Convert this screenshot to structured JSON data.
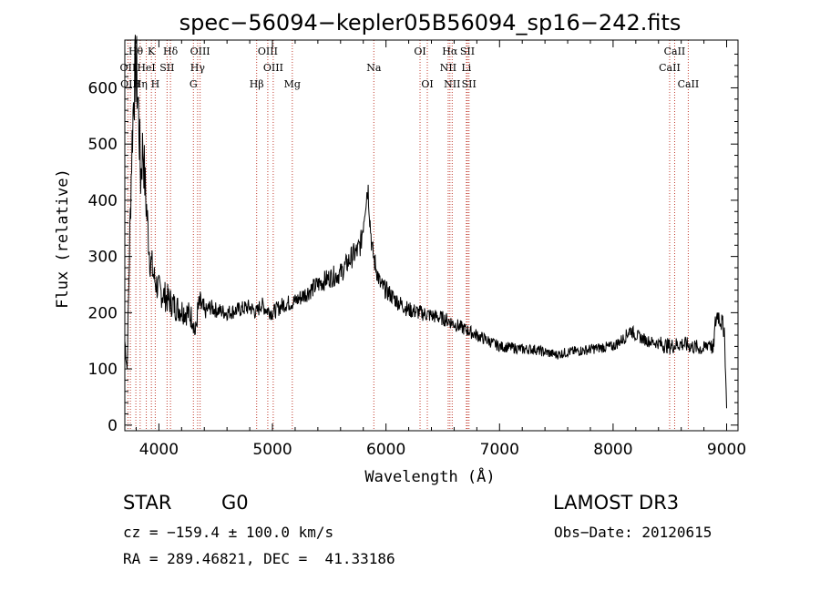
{
  "chart_data": {
    "type": "line",
    "title": "spec−56094−kepler05B56094_sp16−242.fits",
    "xlabel": "Wavelength (Å)",
    "ylabel": "Flux (relative)",
    "xlim": [
      3700,
      9100
    ],
    "ylim": [
      -10,
      685
    ],
    "xticks": [
      4000,
      5000,
      6000,
      7000,
      8000,
      9000
    ],
    "yticks": [
      0,
      100,
      200,
      300,
      400,
      500,
      600
    ],
    "grid": false,
    "series": [
      {
        "name": "flux",
        "x": [
          3700,
          3720,
          3740,
          3760,
          3780,
          3800,
          3820,
          3840,
          3860,
          3880,
          3900,
          3920,
          3940,
          3960,
          3980,
          4000,
          4050,
          4100,
          4150,
          4200,
          4250,
          4300,
          4320,
          4340,
          4360,
          4400,
          4450,
          4500,
          4600,
          4700,
          4800,
          4860,
          4900,
          4950,
          5000,
          5100,
          5200,
          5300,
          5400,
          5500,
          5600,
          5700,
          5750,
          5780,
          5800,
          5820,
          5840,
          5850,
          5860,
          5880,
          5900,
          5950,
          6000,
          6100,
          6200,
          6300,
          6400,
          6500,
          6560,
          6600,
          6700,
          6800,
          6900,
          7000,
          7100,
          7200,
          7300,
          7400,
          7500,
          7600,
          7700,
          7800,
          7900,
          8000,
          8100,
          8150,
          8200,
          8300,
          8400,
          8500,
          8600,
          8700,
          8800,
          8850,
          8880,
          8900,
          8920,
          8950,
          8980,
          9000
        ],
        "y": [
          150,
          100,
          300,
          480,
          600,
          640,
          560,
          440,
          500,
          420,
          360,
          300,
          280,
          260,
          250,
          240,
          230,
          220,
          210,
          205,
          200,
          190,
          160,
          200,
          215,
          200,
          210,
          205,
          200,
          205,
          210,
          200,
          215,
          205,
          200,
          215,
          220,
          235,
          250,
          262,
          270,
          300,
          310,
          325,
          360,
          400,
          425,
          400,
          360,
          310,
          290,
          250,
          240,
          220,
          205,
          200,
          195,
          190,
          185,
          180,
          170,
          160,
          150,
          140,
          138,
          135,
          135,
          130,
          125,
          130,
          132,
          135,
          138,
          140,
          155,
          170,
          160,
          150,
          145,
          140,
          145,
          140,
          135,
          150,
          130,
          180,
          200,
          185,
          170,
          30
        ]
      }
    ],
    "lines": [
      {
        "name": "Hθ",
        "wl": 3797
      },
      {
        "name": "K",
        "wl": 3934
      },
      {
        "name": "Hδ",
        "wl": 4102
      },
      {
        "name": "OIII",
        "wl": 4363
      },
      {
        "name": "OIII",
        "wl": 4959
      },
      {
        "name": "OI",
        "wl": 6300
      },
      {
        "name": "Hα",
        "wl": 6563
      },
      {
        "name": "SII",
        "wl": 6717
      },
      {
        "name": "CaII",
        "wl": 8542
      },
      {
        "name": "OII",
        "wl": 3727
      },
      {
        "name": "HeI",
        "wl": 3889
      },
      {
        "name": "SII",
        "wl": 4072
      },
      {
        "name": "Hγ",
        "wl": 4341
      },
      {
        "name": "OIII",
        "wl": 5007
      },
      {
        "name": "Na",
        "wl": 5893
      },
      {
        "name": "NII",
        "wl": 6548
      },
      {
        "name": "Li",
        "wl": 6708
      },
      {
        "name": "CaII",
        "wl": 8498
      },
      {
        "name": "OIII",
        "wl": 3749
      },
      {
        "name": "Hη",
        "wl": 3835
      },
      {
        "name": "H",
        "wl": 3968
      },
      {
        "name": "G",
        "wl": 4304
      },
      {
        "name": "Hβ",
        "wl": 4861
      },
      {
        "name": "Mg",
        "wl": 5175
      },
      {
        "name": "OI",
        "wl": 6364
      },
      {
        "name": "NII",
        "wl": 6583
      },
      {
        "name": "SII",
        "wl": 6731
      },
      {
        "name": "CaII",
        "wl": 8662
      }
    ]
  },
  "info": {
    "class": "STAR",
    "subclass": "G0",
    "survey": "LAMOST DR3",
    "cz": "cz = −159.4 ± 100.0 km/s",
    "obs_date": "Obs−Date: 20120615",
    "coords": "RA = 289.46821, DEC =  41.33186"
  }
}
